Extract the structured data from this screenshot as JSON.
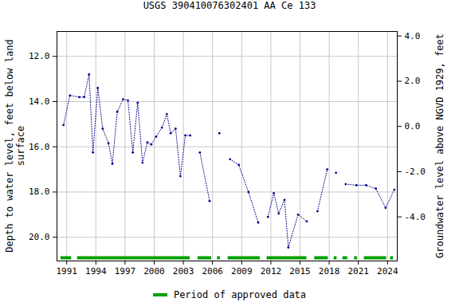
{
  "chart_data": {
    "type": "line",
    "title": "USGS 390410076302401 AA Ce 133",
    "y_label": "Depth to water level, feet below land\nsurface",
    "y2_label": "Groundwater level above NGVD 1929, feet",
    "x": [
      1990.67,
      1991.33,
      1992.3,
      1992.8,
      1993.3,
      1993.7,
      1994.2,
      1994.7,
      1995.3,
      1995.7,
      1996.2,
      1996.8,
      1997.3,
      1997.8,
      1998.3,
      1998.8,
      1999.3,
      1999.7,
      2000.2,
      2000.8,
      2001.3,
      2001.7,
      2002.2,
      2002.7,
      2003.2,
      2003.7,
      2004.2,
      2004.7,
      2005.7,
      2006.2,
      2006.7,
      2007.2,
      2007.8,
      2008.7,
      2009.7,
      2010.7,
      2011.2,
      2011.7,
      2012.3,
      2012.8,
      2013.4,
      2013.8,
      2014.8,
      2015.7,
      2016.2,
      2016.8,
      2017.8,
      2018.2,
      2018.7,
      2019.2,
      2019.7,
      2020.8,
      2021.8,
      2022.8,
      2023.8,
      2024.7
    ],
    "values": [
      15.04,
      13.73,
      13.8,
      13.8,
      12.8,
      16.25,
      13.4,
      15.2,
      15.85,
      16.75,
      14.45,
      13.9,
      13.95,
      16.25,
      14.05,
      16.7,
      15.8,
      15.9,
      15.55,
      15.15,
      14.55,
      15.4,
      15.2,
      17.3,
      15.5,
      15.5,
      null,
      16.25,
      18.4,
      null,
      15.4,
      null,
      16.55,
      16.8,
      18.0,
      19.35,
      null,
      19.1,
      18.05,
      18.95,
      18.35,
      20.45,
      19.0,
      19.3,
      null,
      18.85,
      17.0,
      null,
      17.15,
      null,
      17.65,
      17.7,
      17.7,
      17.85,
      18.7,
      17.9
    ],
    "color": "#00008b",
    "marker": "dot",
    "line_style": "dotted",
    "xlim": [
      1990.0,
      2025.0
    ],
    "xticks": [
      1991,
      1994,
      1997,
      2000,
      2003,
      2006,
      2009,
      2012,
      2015,
      2018,
      2021,
      2024
    ],
    "ylim": [
      10.9,
      21.05
    ],
    "yticks": [
      {
        "value": 12,
        "label": "12.0"
      },
      {
        "value": 14,
        "label": "14.0"
      },
      {
        "value": 16,
        "label": "16.0"
      },
      {
        "value": 18,
        "label": "18.0"
      },
      {
        "value": 20,
        "label": "20.0"
      }
    ],
    "y2lim": [
      4.2,
      -5.95
    ],
    "y2ticks": [
      {
        "value": 4,
        "label": "4.0"
      },
      {
        "value": 2,
        "label": "2.0"
      },
      {
        "value": 0,
        "label": "0.0"
      },
      {
        "value": -2,
        "label": "-2.0"
      },
      {
        "value": -4,
        "label": "-4.0"
      }
    ],
    "grid": true,
    "approved_periods": {
      "name": "Period of approved data",
      "color": "#00a000",
      "periods": [
        [
          1990.4,
          1991.5
        ],
        [
          1992.1,
          2003.7
        ],
        [
          2004.5,
          2005.9
        ],
        [
          2006.5,
          2006.8
        ],
        [
          2007.6,
          2010.9
        ],
        [
          2011.6,
          2015.7
        ],
        [
          2016.5,
          2017.9
        ],
        [
          2018.5,
          2018.8
        ],
        [
          2019.4,
          2019.9
        ],
        [
          2020.6,
          2020.9
        ],
        [
          2021.6,
          2023.9
        ],
        [
          2024.3,
          2024.6
        ]
      ]
    }
  }
}
